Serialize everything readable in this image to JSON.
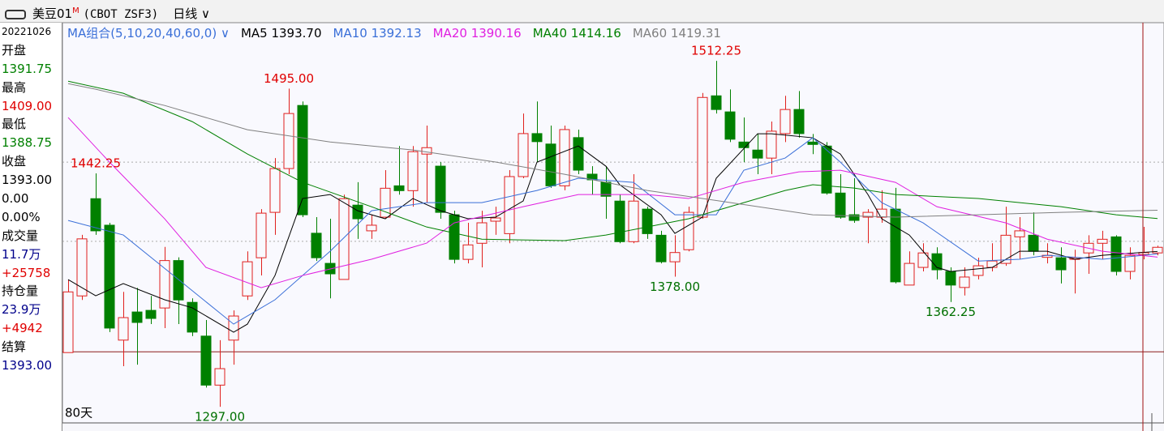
{
  "header": {
    "title": "美豆01",
    "superscript": "M",
    "code": "(CBOT ZSF3)",
    "period": "日线"
  },
  "info_panel": {
    "rows": [
      "20221026",
      "开盘",
      "1391.75",
      "最高",
      "1409.00",
      "最低",
      "1388.75",
      "收盘",
      "1393.00",
      "0.00",
      "0.00%",
      "成交量",
      "11.7万",
      "+25758",
      "持仓量",
      "23.9万",
      "+4942",
      "结算",
      "1393.00"
    ]
  },
  "chart_data": {
    "type": "candlestick",
    "legend_title": "MA组合(5,10,20,40,60,0)",
    "period_label": "80天",
    "ylim": [
      1288,
      1535
    ],
    "up_color": "#e0201e",
    "down_color": "#008000",
    "grid_lines": [
      1449.25,
      1400
    ],
    "reference_line": 1331.25,
    "crosshair_index": 78,
    "open": [
      1330.75,
      1366,
      1426.5,
      1410,
      1338.5,
      1356,
      1357,
      1358.5,
      1388,
      1362,
      1341,
      1310.5,
      1338.5,
      1366,
      1389.75,
      1418,
      1445.25,
      1484.5,
      1405,
      1386.25,
      1376.25,
      1422.5,
      1406.5,
      1415,
      1434.5,
      1431.5,
      1454.25,
      1446.75,
      1416.5,
      1388.75,
      1398.75,
      1412.5,
      1404.75,
      1440.25,
      1467,
      1460.5,
      1434.5,
      1464.5,
      1441.75,
      1436.75,
      1425,
      1399.75,
      1420,
      1403.75,
      1387.25,
      1394.75,
      1415,
      1490.5,
      1480.5,
      1461.75,
      1456.75,
      1451.75,
      1467,
      1482,
      1461.75,
      1459.25,
      1430,
      1416.5,
      1415,
      1415,
      1420,
      1372.75,
      1383.75,
      1392.25,
      1381.25,
      1371.25,
      1378.75,
      1383.75,
      1386.25,
      1402.75,
      1403.75,
      1390,
      1389.75,
      1388.75,
      1392.75,
      1398.75,
      1402.75,
      1381.25,
      1391.75,
      1392.75
    ],
    "high": [
      1376,
      1404,
      1442.25,
      1411.5,
      1368.5,
      1371,
      1366,
      1396.5,
      1390,
      1364.5,
      1351,
      1338.5,
      1357,
      1393.75,
      1420,
      1451.75,
      1495,
      1487,
      1415,
      1414,
      1429,
      1436.75,
      1416.5,
      1444.25,
      1459.25,
      1459.25,
      1472,
      1449.25,
      1419,
      1411.5,
      1419,
      1421.5,
      1444.25,
      1479.5,
      1487,
      1472,
      1472,
      1469.5,
      1446.75,
      1446.75,
      1429,
      1441.75,
      1421.5,
      1406.5,
      1403.75,
      1421.5,
      1492.25,
      1512.25,
      1494.5,
      1477,
      1466.75,
      1474.5,
      1490.5,
      1493.5,
      1466.75,
      1461.75,
      1441.75,
      1439.25,
      1420,
      1431.75,
      1433.25,
      1393.75,
      1398.75,
      1396.25,
      1383.75,
      1383.75,
      1389.75,
      1398.75,
      1421.5,
      1415,
      1418,
      1398.75,
      1396.25,
      1394.75,
      1403.75,
      1406.5,
      1403.75,
      1396.25,
      1409,
      1397.25
    ],
    "low": [
      1330.75,
      1363.5,
      1404,
      1343.5,
      1322.25,
      1323.25,
      1348.5,
      1346,
      1348.5,
      1341,
      1309,
      1297,
      1323.25,
      1363.5,
      1378.75,
      1404,
      1441.75,
      1415,
      1387.75,
      1364.5,
      1376.25,
      1401.5,
      1401.5,
      1414,
      1429,
      1421.5,
      1424,
      1414,
      1386.25,
      1386.25,
      1383.75,
      1404,
      1398.75,
      1439.25,
      1449.25,
      1433.25,
      1431.75,
      1441.75,
      1429,
      1414,
      1398.75,
      1398.75,
      1401.5,
      1386.25,
      1378,
      1393.75,
      1414,
      1479.5,
      1461.75,
      1449.25,
      1441.75,
      1441.75,
      1461.75,
      1464.5,
      1454.25,
      1429,
      1414,
      1411.5,
      1398.75,
      1411.5,
      1373.75,
      1372.75,
      1381.25,
      1376.25,
      1362.25,
      1366.25,
      1376.25,
      1381.25,
      1384.75,
      1388.75,
      1391.25,
      1386.25,
      1373.75,
      1367.5,
      1379.75,
      1388.75,
      1378.75,
      1376.25,
      1388.75,
      1391.25
    ],
    "close": [
      1368.5,
      1401.5,
      1406.5,
      1346,
      1352.5,
      1349.5,
      1352,
      1388,
      1363.5,
      1343.5,
      1310.5,
      1320.75,
      1353.5,
      1387.25,
      1417.5,
      1445.25,
      1479.5,
      1416.5,
      1389.75,
      1379.75,
      1426.5,
      1414,
      1410,
      1433,
      1431.5,
      1455.75,
      1458.25,
      1418,
      1388.75,
      1397.75,
      1411.5,
      1414.5,
      1440.25,
      1467,
      1462,
      1434.5,
      1469.5,
      1444.25,
      1438.25,
      1428,
      1399.75,
      1425,
      1404.75,
      1387.25,
      1393,
      1418,
      1489.5,
      1482,
      1463.5,
      1458.25,
      1451.75,
      1468.5,
      1482,
      1467,
      1460.25,
      1430,
      1415,
      1413,
      1418,
      1420,
      1374.75,
      1386.25,
      1392.75,
      1382.25,
      1372.75,
      1377.75,
      1384.75,
      1387.75,
      1403.75,
      1406.5,
      1393.75,
      1391.25,
      1382.25,
      1389.75,
      1398.75,
      1401.25,
      1381.25,
      1391.25,
      1393,
      1396.25
    ],
    "lines": [
      {
        "name": "MA5",
        "legend_value": "1393.70",
        "color": "#000000",
        "x": [
          0,
          2,
          4,
          7,
          9,
          12,
          13,
          15,
          17,
          19,
          21,
          23,
          25,
          27,
          29,
          31,
          33,
          34,
          37,
          39,
          40,
          43,
          44,
          46,
          47,
          50,
          51,
          54,
          56,
          58,
          59,
          61,
          63,
          64,
          67,
          69,
          71,
          73,
          75,
          79
        ],
        "values": [
          1376.2,
          1366.1,
          1373.65,
          1363.6,
          1358.6,
          1343.4,
          1348.45,
          1378.7,
          1426.6,
          1429.1,
          1419,
          1414,
          1426.6,
          1419,
          1414,
          1415,
          1425.1,
          1449.25,
          1459.3,
          1446.7,
          1435.2,
          1416.5,
          1404.9,
          1415,
          1439.2,
          1466.9,
          1466.9,
          1464.4,
          1454.3,
          1429.1,
          1414,
          1403.9,
          1383.7,
          1381.2,
          1383.7,
          1393.8,
          1393.8,
          1388.8,
          1391.3,
          1393.7
        ]
      },
      {
        "name": "MA10",
        "legend_value": "1392.13",
        "color": "#3a6fd8",
        "x": [
          0,
          4,
          8,
          12,
          15,
          19,
          22,
          26,
          30,
          34,
          37,
          41,
          44,
          47,
          49,
          52,
          54,
          56,
          59,
          62,
          66,
          69,
          71,
          75,
          79
        ],
        "values": [
          1412.95,
          1403.9,
          1376.2,
          1348.45,
          1363.6,
          1393.8,
          1419,
          1424.05,
          1424.05,
          1431.6,
          1439.2,
          1436.65,
          1416.5,
          1416.5,
          1444.2,
          1451.8,
          1464.4,
          1449.25,
          1424.05,
          1411.45,
          1387.7,
          1388.8,
          1391.3,
          1388.8,
          1392.13
        ]
      },
      {
        "name": "MA20",
        "legend_value": "1390.16",
        "color": "#e020e0",
        "x": [
          0,
          3,
          7,
          10,
          14,
          17,
          22,
          26,
          28,
          33,
          37,
          42,
          45,
          49,
          53,
          56,
          60,
          63,
          68,
          71,
          75,
          79
        ],
        "values": [
          1477,
          1449.25,
          1414,
          1383.7,
          1371.1,
          1378.7,
          1388.8,
          1398.85,
          1411.45,
          1421.5,
          1429.1,
          1429.1,
          1426.6,
          1436.7,
          1443.2,
          1444.2,
          1436.65,
          1421.5,
          1411.45,
          1401.3,
          1393.8,
          1390.16
        ]
      },
      {
        "name": "MA40",
        "legend_value": "1414.16",
        "color": "#008000",
        "x": [
          0,
          4,
          9,
          13,
          17,
          22,
          26,
          30,
          36,
          39,
          42,
          45,
          49,
          52,
          54,
          57,
          60,
          66,
          72,
          76,
          79
        ],
        "values": [
          1499.6,
          1492.1,
          1474.45,
          1454.3,
          1436.7,
          1421.5,
          1408.9,
          1401.3,
          1400.4,
          1403.9,
          1408.9,
          1414,
          1424.05,
          1431.6,
          1435.2,
          1433.1,
          1429.1,
          1426.6,
          1421.5,
          1416.5,
          1414.16
        ]
      },
      {
        "name": "MA60",
        "legend_value": "1419.31",
        "color": "#808080",
        "x": [
          0,
          2,
          7,
          13,
          19,
          25,
          31,
          36,
          42,
          48,
          54,
          60,
          66,
          72,
          79
        ],
        "values": [
          1498.1,
          1494.6,
          1484.5,
          1469.4,
          1461.8,
          1456.8,
          1449.3,
          1441.7,
          1431.6,
          1424.1,
          1416.5,
          1415,
          1416.5,
          1418,
          1419.31
        ]
      }
    ],
    "annotations": [
      {
        "index": 47,
        "value": 1512.25,
        "label": "1512.25"
      },
      {
        "index": 16,
        "value": 1495,
        "label": "1495.00"
      },
      {
        "index": 2,
        "value": 1442.25,
        "label": "1442.25"
      },
      {
        "index": 44,
        "value": 1378,
        "label": "1378.00"
      },
      {
        "index": 64,
        "value": 1362.25,
        "label": "1362.25"
      },
      {
        "index": 11,
        "value": 1297,
        "label": "1297.00"
      }
    ]
  }
}
